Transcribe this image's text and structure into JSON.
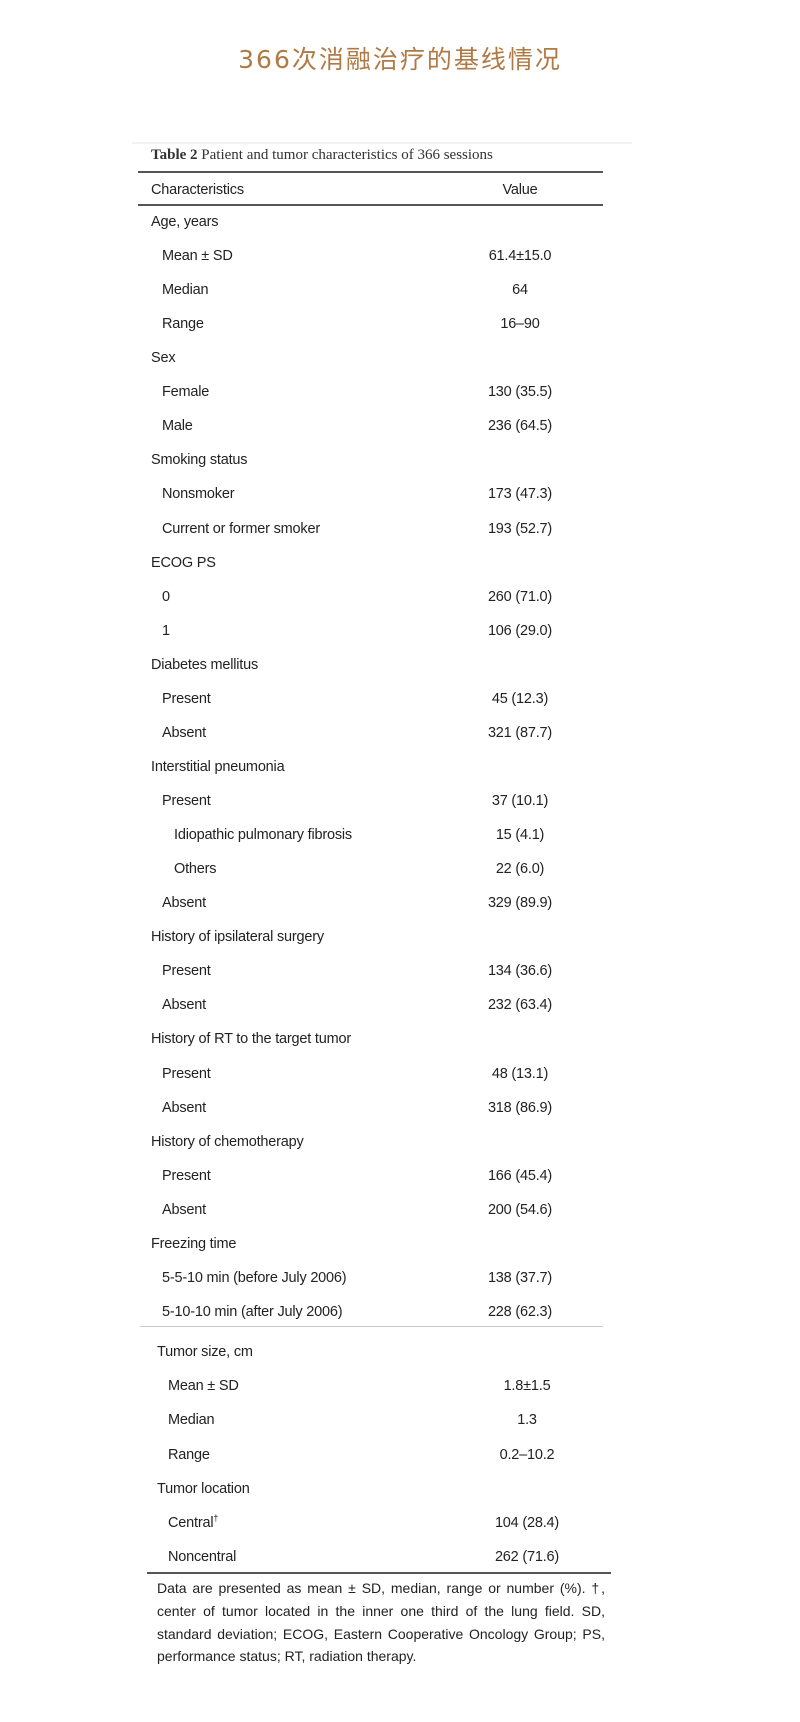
{
  "page_title": "366次消融治疗的基线情况",
  "table": {
    "caption_label": "Table 2",
    "caption_text": "Patient and tumor characteristics of 366 sessions",
    "header": {
      "characteristics": "Characteristics",
      "value": "Value"
    },
    "rows_upper": [
      {
        "label": "Age, years",
        "value": "",
        "level": 0
      },
      {
        "label": "Mean ± SD",
        "value": "61.4±15.0",
        "level": 1
      },
      {
        "label": "Median",
        "value": "64",
        "level": 1
      },
      {
        "label": "Range",
        "value": "16–90",
        "level": 1
      },
      {
        "label": "Sex",
        "value": "",
        "level": 0
      },
      {
        "label": "Female",
        "value": "130 (35.5)",
        "level": 1
      },
      {
        "label": "Male",
        "value": "236 (64.5)",
        "level": 1
      },
      {
        "label": "Smoking status",
        "value": "",
        "level": 0
      },
      {
        "label": "Nonsmoker",
        "value": "173 (47.3)",
        "level": 1
      },
      {
        "label": "Current or former smoker",
        "value": "193 (52.7)",
        "level": 1
      },
      {
        "label": "ECOG PS",
        "value": "",
        "level": 0
      },
      {
        "label": "0",
        "value": "260 (71.0)",
        "level": 1
      },
      {
        "label": "1",
        "value": "106 (29.0)",
        "level": 1
      },
      {
        "label": "Diabetes mellitus",
        "value": "",
        "level": 0
      },
      {
        "label": "Present",
        "value": "45 (12.3)",
        "level": 1
      },
      {
        "label": "Absent",
        "value": "321 (87.7)",
        "level": 1
      },
      {
        "label": "Interstitial pneumonia",
        "value": "",
        "level": 0
      },
      {
        "label": "Present",
        "value": "37 (10.1)",
        "level": 1
      },
      {
        "label": "Idiopathic pulmonary fibrosis",
        "value": "15 (4.1)",
        "level": 2
      },
      {
        "label": "Others",
        "value": "22 (6.0)",
        "level": 2
      },
      {
        "label": "Absent",
        "value": "329 (89.9)",
        "level": 1
      },
      {
        "label": "History of ipsilateral surgery",
        "value": "",
        "level": 0
      },
      {
        "label": "Present",
        "value": "134 (36.6)",
        "level": 1
      },
      {
        "label": "Absent",
        "value": "232 (63.4)",
        "level": 1
      },
      {
        "label": "History of RT to the target tumor",
        "value": "",
        "level": 0
      },
      {
        "label": "Present",
        "value": "48 (13.1)",
        "level": 1
      },
      {
        "label": "Absent",
        "value": "318 (86.9)",
        "level": 1
      },
      {
        "label": "History of chemotherapy",
        "value": "",
        "level": 0
      },
      {
        "label": "Present",
        "value": "166 (45.4)",
        "level": 1
      },
      {
        "label": "Absent",
        "value": "200 (54.6)",
        "level": 1
      },
      {
        "label": "Freezing time",
        "value": "",
        "level": 0
      },
      {
        "label": "5-5-10 min (before July 2006)",
        "value": "138 (37.7)",
        "level": 1
      },
      {
        "label": "5-10-10 min (after July 2006)",
        "value": "228 (62.3)",
        "level": 1
      }
    ],
    "rows_lower": [
      {
        "label": "Tumor size, cm",
        "value": "",
        "level": 0
      },
      {
        "label": "Mean ± SD",
        "value": "1.8±1.5",
        "level": 1
      },
      {
        "label": "Median",
        "value": "1.3",
        "level": 1
      },
      {
        "label": "Range",
        "value": "0.2–10.2",
        "level": 1
      },
      {
        "label": "Tumor location",
        "value": "",
        "level": 0
      },
      {
        "label": "Central",
        "sup": "†",
        "value": "104 (28.4)",
        "level": 1
      },
      {
        "label": "Noncentral",
        "value": "262 (71.6)",
        "level": 1
      }
    ],
    "footnote": "Data are presented as mean ± SD, median, range or number (%). †, center of tumor located in the inner one third of the lung field. SD, standard deviation; ECOG, Eastern Cooperative Oncology Group; PS, performance status; RT, radiation therapy."
  }
}
